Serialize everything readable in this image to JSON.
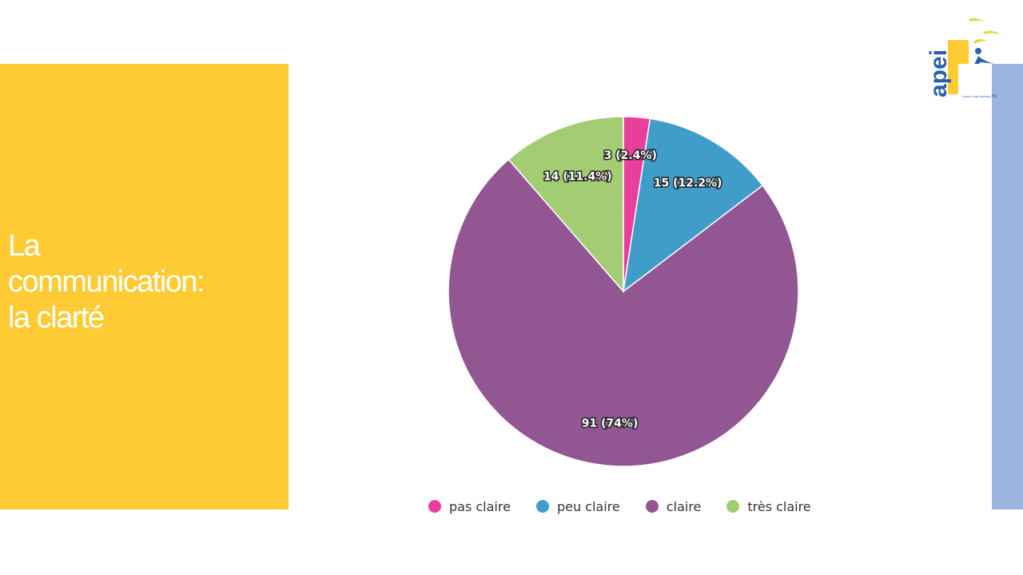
{
  "slide": {
    "title_lines": [
      "La",
      "communication:",
      "la clarté"
    ]
  },
  "logo": {
    "wordmark": "apei",
    "subtitle": "CENTRE MANCHE"
  },
  "colors": {
    "left_panel": "#fecb35",
    "right_strip": "#9db4e0"
  },
  "chart_data": {
    "type": "pie",
    "categories": [
      "pas claire",
      "peu claire",
      "claire",
      "très claire"
    ],
    "values": [
      3,
      15,
      91,
      14
    ],
    "labels": [
      "3 (2.4%)",
      "15 (12.2%)",
      "91 (74%)",
      "14 (11.4%)"
    ],
    "colors": [
      "#e83e9c",
      "#409dc9",
      "#925693",
      "#a4cc73"
    ],
    "legend_position": "bottom",
    "start_angle": "top, clockwise"
  }
}
